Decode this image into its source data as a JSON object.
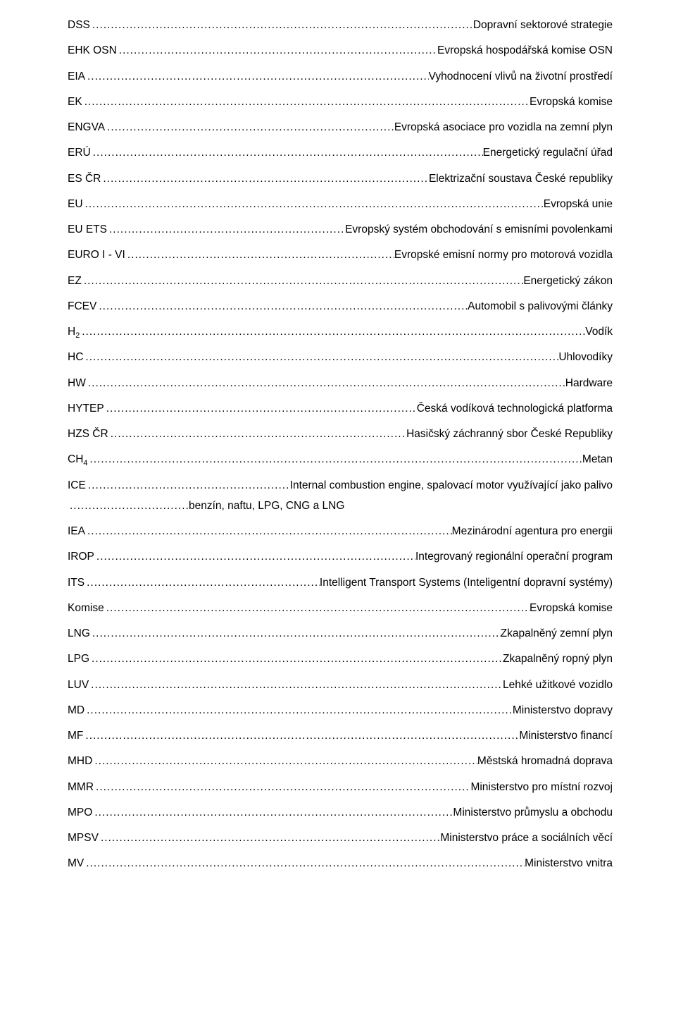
{
  "entries": [
    {
      "abbr": "DSS",
      "def": "Dopravní sektorové strategie"
    },
    {
      "abbr": "EHK OSN",
      "def": "Evropská hospodářská komise OSN"
    },
    {
      "abbr": "EIA",
      "def": "Vyhodnocení vlivů na životní prostředí"
    },
    {
      "abbr": "EK",
      "def": "Evropská komise"
    },
    {
      "abbr": "ENGVA",
      "def": "Evropská asociace pro vozidla na zemní plyn"
    },
    {
      "abbr": "ERÚ",
      "def": "Energetický regulační úřad"
    },
    {
      "abbr": "ES ČR",
      "def": "Elektrizační soustava České republiky"
    },
    {
      "abbr": "EU",
      "def": "Evropská unie"
    },
    {
      "abbr": "EU ETS",
      "def": "Evropský systém obchodování s emisními povolenkami"
    },
    {
      "abbr": "EURO I - VI",
      "def": "Evropské emisní normy pro motorová vozidla"
    },
    {
      "abbr": "EZ",
      "def": "Energetický zákon"
    },
    {
      "abbr": "FCEV",
      "def": "Automobil s palivovými články"
    },
    {
      "abbr": "H",
      "sub": "2",
      "def": "Vodík"
    },
    {
      "abbr": "HC",
      "def": "Uhlovodíky"
    },
    {
      "abbr": "HW",
      "def": "Hardware"
    },
    {
      "abbr": "HYTEP",
      "def": "Česká vodíková technologická platforma"
    },
    {
      "abbr": "HZS ČR",
      "def": "Hasičský záchranný sbor České Republiky"
    },
    {
      "abbr": "CH",
      "sub": "4",
      "def": "Metan"
    },
    {
      "abbr": "ICE",
      "def_line1": "Internal combustion engine, spalovací motor využívající jako palivo",
      "def_line2": "benzín, naftu, LPG, CNG a LNG",
      "multiline": true
    },
    {
      "abbr": "IEA",
      "def": "Mezinárodní agentura pro energii"
    },
    {
      "abbr": "IROP",
      "def": "Integrovaný regionální operační program"
    },
    {
      "abbr": "ITS",
      "def": "Intelligent Transport Systems (Inteligentní dopravní systémy)"
    },
    {
      "abbr": "Komise",
      "def": "Evropská komise"
    },
    {
      "abbr": "LNG",
      "def": "Zkapalněný zemní plyn"
    },
    {
      "abbr": "LPG",
      "def": "Zkapalněný ropný plyn"
    },
    {
      "abbr": "LUV",
      "def": "Lehké užitkové vozidlo"
    },
    {
      "abbr": "MD",
      "def": "Ministerstvo dopravy"
    },
    {
      "abbr": "MF",
      "def": "Ministerstvo financí"
    },
    {
      "abbr": "MHD",
      "def": "Městská hromadná doprava"
    },
    {
      "abbr": "MMR",
      "def": "Ministerstvo pro místní rozvoj"
    },
    {
      "abbr": "MPO",
      "def": "Ministerstvo průmyslu a obchodu"
    },
    {
      "abbr": "MPSV",
      "def": "Ministerstvo práce a sociálních věcí"
    },
    {
      "abbr": "MV",
      "def": "Ministerstvo vnitra"
    }
  ],
  "dot_fill": "......................................................................................................................................................................................"
}
